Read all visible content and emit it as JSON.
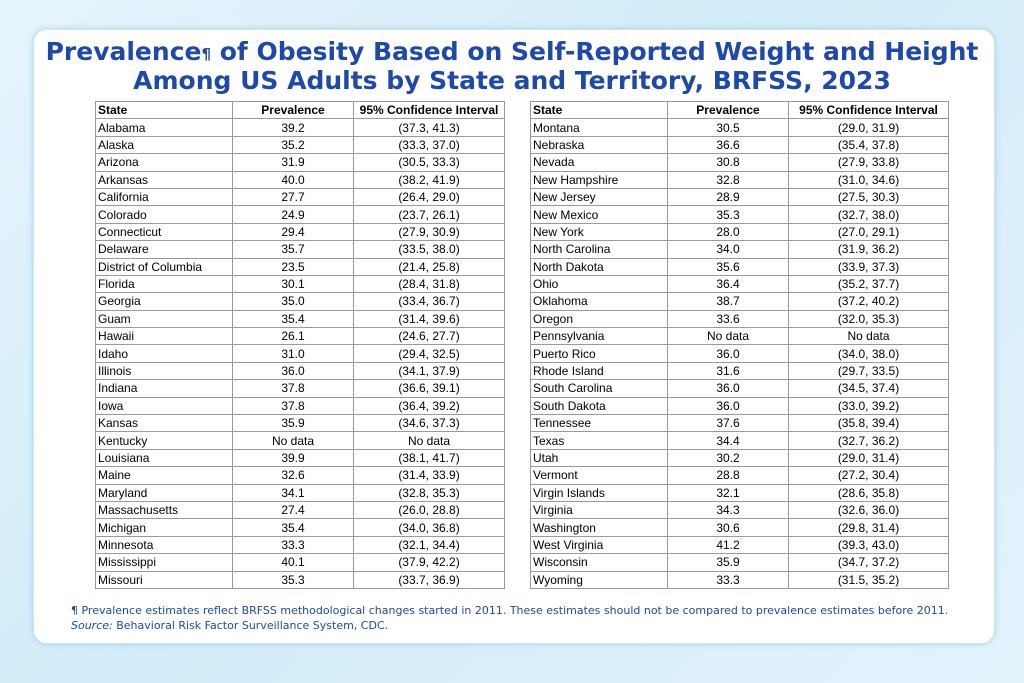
{
  "title": {
    "line1_start": "Prevalence",
    "footnote_mark": "¶",
    "line1_end": " of Obesity Based on Self-Reported Weight and Height",
    "line2": "Among US Adults by State and Territory, BRFSS, 2023"
  },
  "columns": [
    "State",
    "Prevalence",
    "95% Confidence Interval"
  ],
  "left_rows": [
    [
      "Alabama",
      "39.2",
      "(37.3, 41.3)"
    ],
    [
      "Alaska",
      "35.2",
      "(33.3, 37.0)"
    ],
    [
      "Arizona",
      "31.9",
      "(30.5, 33.3)"
    ],
    [
      "Arkansas",
      "40.0",
      "(38.2, 41.9)"
    ],
    [
      "California",
      "27.7",
      "(26.4, 29.0)"
    ],
    [
      "Colorado",
      "24.9",
      "(23.7, 26.1)"
    ],
    [
      "Connecticut",
      "29.4",
      "(27.9, 30.9)"
    ],
    [
      "Delaware",
      "35.7",
      "(33.5, 38.0)"
    ],
    [
      "District of Columbia",
      "23.5",
      "(21.4, 25.8)"
    ],
    [
      "Florida",
      "30.1",
      "(28.4, 31.8)"
    ],
    [
      "Georgia",
      "35.0",
      "(33.4, 36.7)"
    ],
    [
      "Guam",
      "35.4",
      "(31.4, 39.6)"
    ],
    [
      "Hawaii",
      "26.1",
      "(24.6, 27.7)"
    ],
    [
      "Idaho",
      "31.0",
      "(29.4, 32.5)"
    ],
    [
      "Illinois",
      "36.0",
      "(34.1, 37.9)"
    ],
    [
      "Indiana",
      "37.8",
      "(36.6, 39.1)"
    ],
    [
      "Iowa",
      "37.8",
      "(36.4, 39.2)"
    ],
    [
      "Kansas",
      "35.9",
      "(34.6, 37.3)"
    ],
    [
      "Kentucky",
      "No data",
      "No data"
    ],
    [
      "Louisiana",
      "39.9",
      "(38.1, 41.7)"
    ],
    [
      "Maine",
      "32.6",
      "(31.4, 33.9)"
    ],
    [
      "Maryland",
      "34.1",
      "(32.8, 35.3)"
    ],
    [
      "Massachusetts",
      "27.4",
      "(26.0, 28.8)"
    ],
    [
      "Michigan",
      "35.4",
      "(34.0, 36.8)"
    ],
    [
      "Minnesota",
      "33.3",
      "(32.1, 34.4)"
    ],
    [
      "Mississippi",
      "40.1",
      "(37.9, 42.2)"
    ],
    [
      "Missouri",
      "35.3",
      "(33.7, 36.9)"
    ]
  ],
  "right_rows": [
    [
      "Montana",
      "30.5",
      "(29.0, 31.9)"
    ],
    [
      "Nebraska",
      "36.6",
      "(35.4, 37.8)"
    ],
    [
      "Nevada",
      "30.8",
      "(27.9, 33.8)"
    ],
    [
      "New Hampshire",
      "32.8",
      "(31.0, 34.6)"
    ],
    [
      "New Jersey",
      "28.9",
      "(27.5, 30.3)"
    ],
    [
      "New Mexico",
      "35.3",
      "(32.7, 38.0)"
    ],
    [
      "New York",
      "28.0",
      "(27.0, 29.1)"
    ],
    [
      "North Carolina",
      "34.0",
      "(31.9, 36.2)"
    ],
    [
      "North Dakota",
      "35.6",
      "(33.9, 37.3)"
    ],
    [
      "Ohio",
      "36.4",
      "(35.2, 37.7)"
    ],
    [
      "Oklahoma",
      "38.7",
      "(37.2, 40.2)"
    ],
    [
      "Oregon",
      "33.6",
      "(32.0, 35.3)"
    ],
    [
      "Pennsylvania",
      "No data",
      "No data"
    ],
    [
      "Puerto Rico",
      "36.0",
      "(34.0, 38.0)"
    ],
    [
      "Rhode Island",
      "31.6",
      "(29.7, 33.5)"
    ],
    [
      "South Carolina",
      "36.0",
      "(34.5, 37.4)"
    ],
    [
      "South Dakota",
      "36.0",
      "(33.0, 39.2)"
    ],
    [
      "Tennessee",
      "37.6",
      "(35.8, 39.4)"
    ],
    [
      "Texas",
      "34.4",
      "(32.7, 36.2)"
    ],
    [
      "Utah",
      "30.2",
      "(29.0, 31.4)"
    ],
    [
      "Vermont",
      "28.8",
      "(27.2, 30.4)"
    ],
    [
      "Virgin Islands",
      "32.1",
      "(28.6, 35.8)"
    ],
    [
      "Virginia",
      "34.3",
      "(32.6, 36.0)"
    ],
    [
      "Washington",
      "30.6",
      "(29.8, 31.4)"
    ],
    [
      "West Virginia",
      "41.2",
      "(39.3, 43.0)"
    ],
    [
      "Wisconsin",
      "35.9",
      "(34.7, 37.2)"
    ],
    [
      "Wyoming",
      "33.3",
      "(31.5, 35.2)"
    ]
  ],
  "footnote": {
    "mark": "¶",
    "text": " Prevalence estimates reflect BRFSS methodological changes started in 2011. These estimates should not be compared to prevalence estimates before 2011.",
    "source_label": "Source:",
    "source_text": " Behavioral Risk Factor Surveillance System, CDC."
  },
  "colors": {
    "title": "#1f49a8",
    "border": "#9a9a9a",
    "background": "#d2ecf9"
  }
}
